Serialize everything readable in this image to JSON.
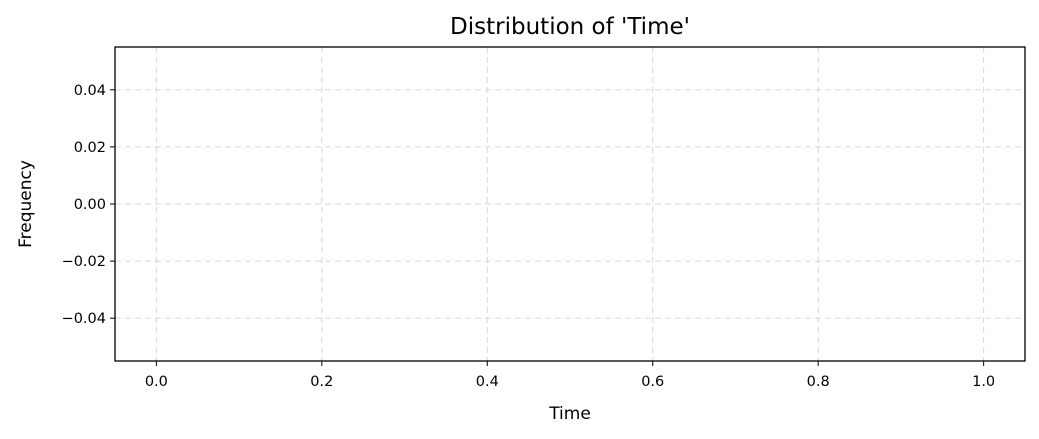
{
  "chart_data": {
    "type": "bar",
    "title": "Distribution of 'Time'",
    "xlabel": "Time",
    "ylabel": "Frequency",
    "xlim": [
      -0.05,
      1.05
    ],
    "ylim": [
      -0.055,
      0.055
    ],
    "x_ticks": [
      0.0,
      0.2,
      0.4,
      0.6,
      0.8,
      1.0
    ],
    "x_tick_labels": [
      "0.0",
      "0.2",
      "0.4",
      "0.6",
      "0.8",
      "1.0"
    ],
    "y_ticks": [
      0.04,
      0.02,
      0.0,
      -0.02,
      -0.04
    ],
    "y_tick_labels": [
      "0.04",
      "0.02",
      "0.00",
      "−0.02",
      "−0.04"
    ],
    "grid": true,
    "categories": [],
    "values": [],
    "colors": {
      "grid": "#d6d6d6",
      "axis": "#000000",
      "background": "#ffffff"
    }
  }
}
